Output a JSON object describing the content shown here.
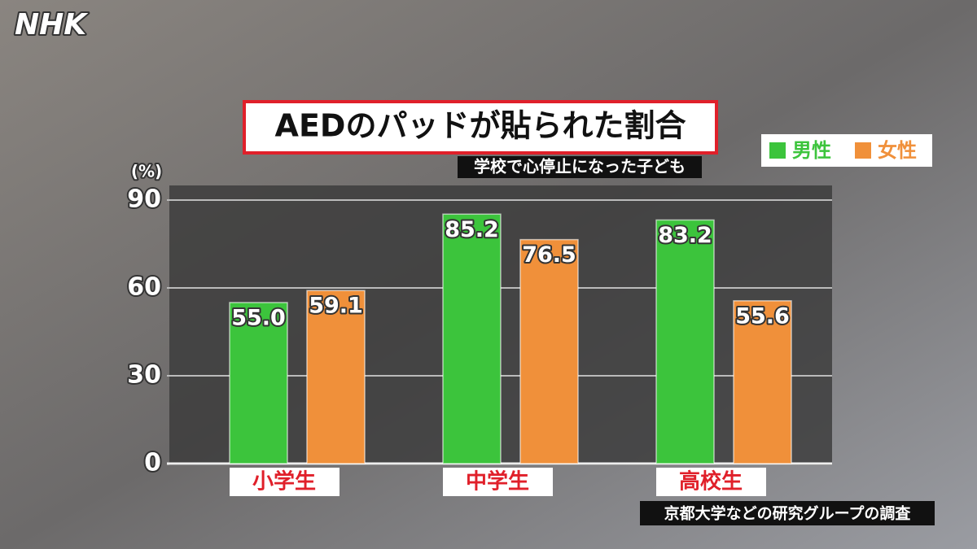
{
  "logo": "NHK",
  "chart_data": {
    "type": "bar",
    "title": "AEDのパッドが貼られた割合",
    "subtitle": "学校で心停止になった子ども",
    "y_label": "(%)",
    "source": "京都大学などの研究グループの調査",
    "categories": [
      "小学生",
      "中学生",
      "高校生"
    ],
    "series": [
      {
        "name": "男性",
        "color": "#3cc43c",
        "values": [
          55.0,
          85.2,
          83.2
        ],
        "value_labels": [
          "55.0",
          "85.2",
          "83.2"
        ]
      },
      {
        "name": "女性",
        "color": "#f0903a",
        "values": [
          59.1,
          76.5,
          55.6
        ],
        "value_labels": [
          "59.1",
          "76.5",
          "55.6"
        ]
      }
    ],
    "ylim": [
      0,
      95
    ],
    "yticks": [
      0,
      30,
      60,
      90
    ],
    "grid": true,
    "legend": "top-right"
  }
}
